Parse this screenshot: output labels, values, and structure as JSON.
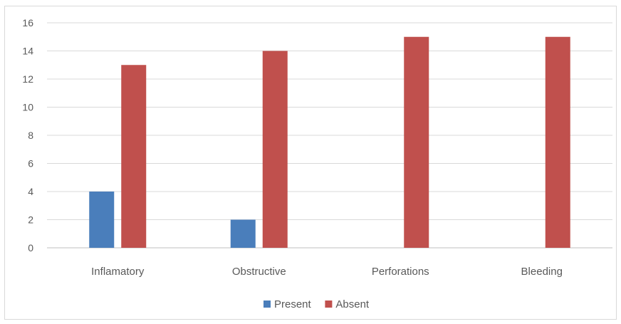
{
  "chart_data": {
    "type": "bar",
    "title": "",
    "xlabel": "",
    "ylabel": "",
    "categories": [
      "Inflamatory",
      "Obstructive",
      "Perforations",
      "Bleeding"
    ],
    "series": [
      {
        "name": "Present",
        "values": [
          4,
          2,
          0,
          0
        ],
        "color": "#4a7ebb"
      },
      {
        "name": "Absent",
        "values": [
          13,
          14,
          15,
          15
        ],
        "color": "#c0504d"
      }
    ],
    "ylim": [
      0,
      16
    ],
    "yticks": [
      "0",
      "2",
      "4",
      "6",
      "8",
      "10",
      "12",
      "14",
      "16"
    ],
    "grid": true,
    "legend_position": "bottom"
  }
}
